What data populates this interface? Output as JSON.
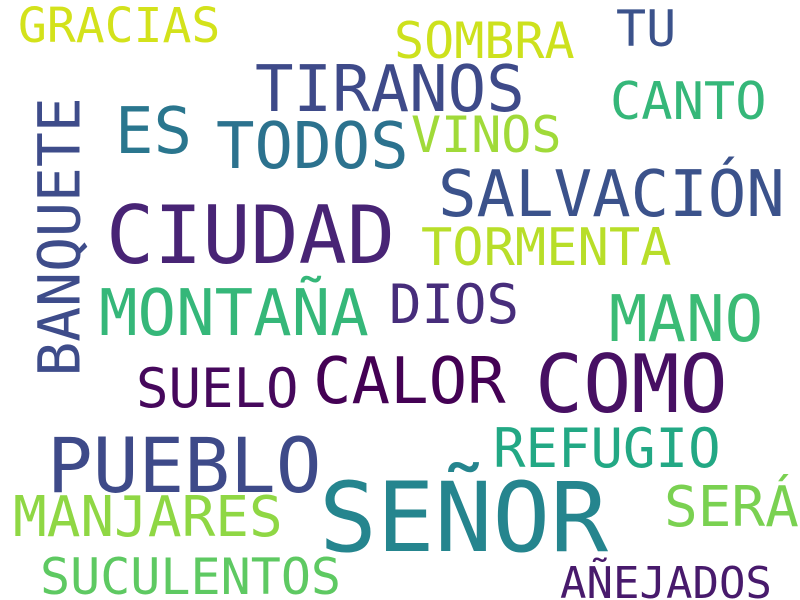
{
  "words": [
    {
      "text": "GRACIAS",
      "color": "#d3e21b"
    },
    {
      "text": "SOMBRA",
      "color": "#cde11d"
    },
    {
      "text": "TU",
      "color": "#3b528b"
    },
    {
      "text": "TIRANOS",
      "color": "#3e4a89"
    },
    {
      "text": "CANTO",
      "color": "#35b779"
    },
    {
      "text": "BANQUETE",
      "color": "#3e4c8a"
    },
    {
      "text": "ES",
      "color": "#2a768e"
    },
    {
      "text": "TODOS",
      "color": "#2c728e"
    },
    {
      "text": "VINOS",
      "color": "#a0da39"
    },
    {
      "text": "SALVACIÓN",
      "color": "#3b528b"
    },
    {
      "text": "CIUDAD",
      "color": "#482475"
    },
    {
      "text": "TORMENTA",
      "color": "#b8de29"
    },
    {
      "text": "MONTAÑA",
      "color": "#35b779"
    },
    {
      "text": "DIOS",
      "color": "#472d7b"
    },
    {
      "text": "MANO",
      "color": "#3bbb75"
    },
    {
      "text": "SUELO",
      "color": "#46085c"
    },
    {
      "text": "CALOR",
      "color": "#440154"
    },
    {
      "text": "COMO",
      "color": "#471063"
    },
    {
      "text": "PUEBLO",
      "color": "#3e4a89"
    },
    {
      "text": "REFUGIO",
      "color": "#22a884"
    },
    {
      "text": "SEÑOR",
      "color": "#25858e"
    },
    {
      "text": "MANJARES",
      "color": "#8fd744"
    },
    {
      "text": "SERÁ",
      "color": "#7ad151"
    },
    {
      "text": "SUCULENTOS",
      "color": "#5ec962"
    },
    {
      "text": "AÑEJADOS",
      "color": "#481a6c"
    }
  ]
}
